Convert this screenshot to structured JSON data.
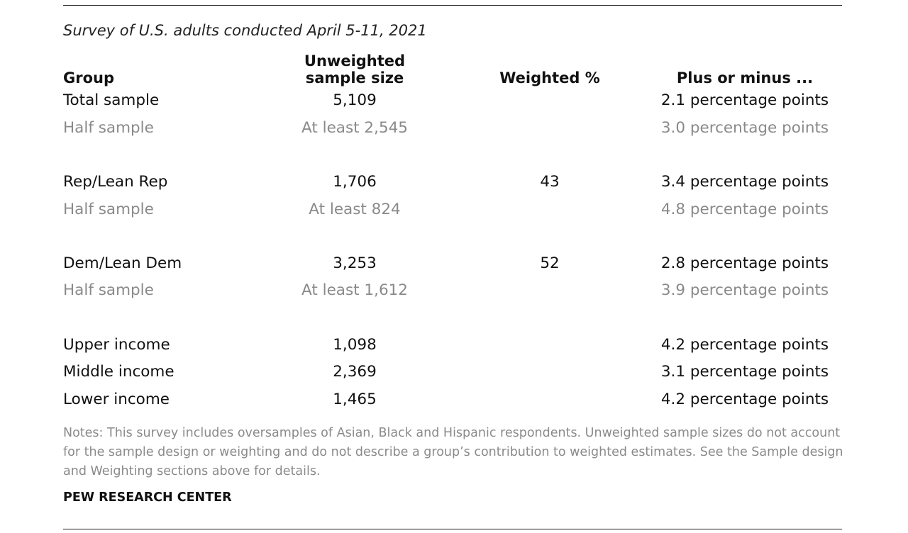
{
  "subtitle": "Survey of U.S. adults conducted April 5-11, 2021",
  "headers": {
    "group": "Group",
    "unweighted_line1": "Unweighted",
    "unweighted_line2": "sample size",
    "weighted": "Weighted %",
    "moe": "Plus or minus ..."
  },
  "rows": [
    {
      "group": "Total sample",
      "size": "5,109",
      "weighted": "",
      "moe": "2.1 percentage points",
      "kind": "main"
    },
    {
      "group": "Half sample",
      "size": "At least 2,545",
      "weighted": "",
      "moe": "3.0 percentage points",
      "kind": "half"
    },
    {
      "group": "Rep/Lean Rep",
      "size": "1,706",
      "weighted": "43",
      "moe": "3.4 percentage points",
      "kind": "main"
    },
    {
      "group": "Half sample",
      "size": "At least 824",
      "weighted": "",
      "moe": "4.8 percentage points",
      "kind": "half"
    },
    {
      "group": "Dem/Lean Dem",
      "size": "3,253",
      "weighted": "52",
      "moe": "2.8 percentage points",
      "kind": "main"
    },
    {
      "group": "Half sample",
      "size": "At least 1,612",
      "weighted": "",
      "moe": "3.9 percentage points",
      "kind": "half"
    },
    {
      "group": "Upper income",
      "size": "1,098",
      "weighted": "",
      "moe": "4.2 percentage points",
      "kind": "main"
    },
    {
      "group": "Middle income",
      "size": "2,369",
      "weighted": "",
      "moe": "3.1 percentage points",
      "kind": "main"
    },
    {
      "group": "Lower income",
      "size": "1,465",
      "weighted": "",
      "moe": "4.2 percentage points",
      "kind": "main"
    }
  ],
  "notes": "Notes: This survey includes oversamples of Asian, Black and Hispanic respondents. Unweighted sample sizes do not account for the sample design or weighting and do not describe a group’s contribution to weighted estimates. See the Sample design and Weighting sections above for details.",
  "source": "PEW RESEARCH CENTER",
  "colors": {
    "main_text": "#111111",
    "half_sample_text": "#8a8a8a",
    "notes_text": "#8a8a8a"
  }
}
